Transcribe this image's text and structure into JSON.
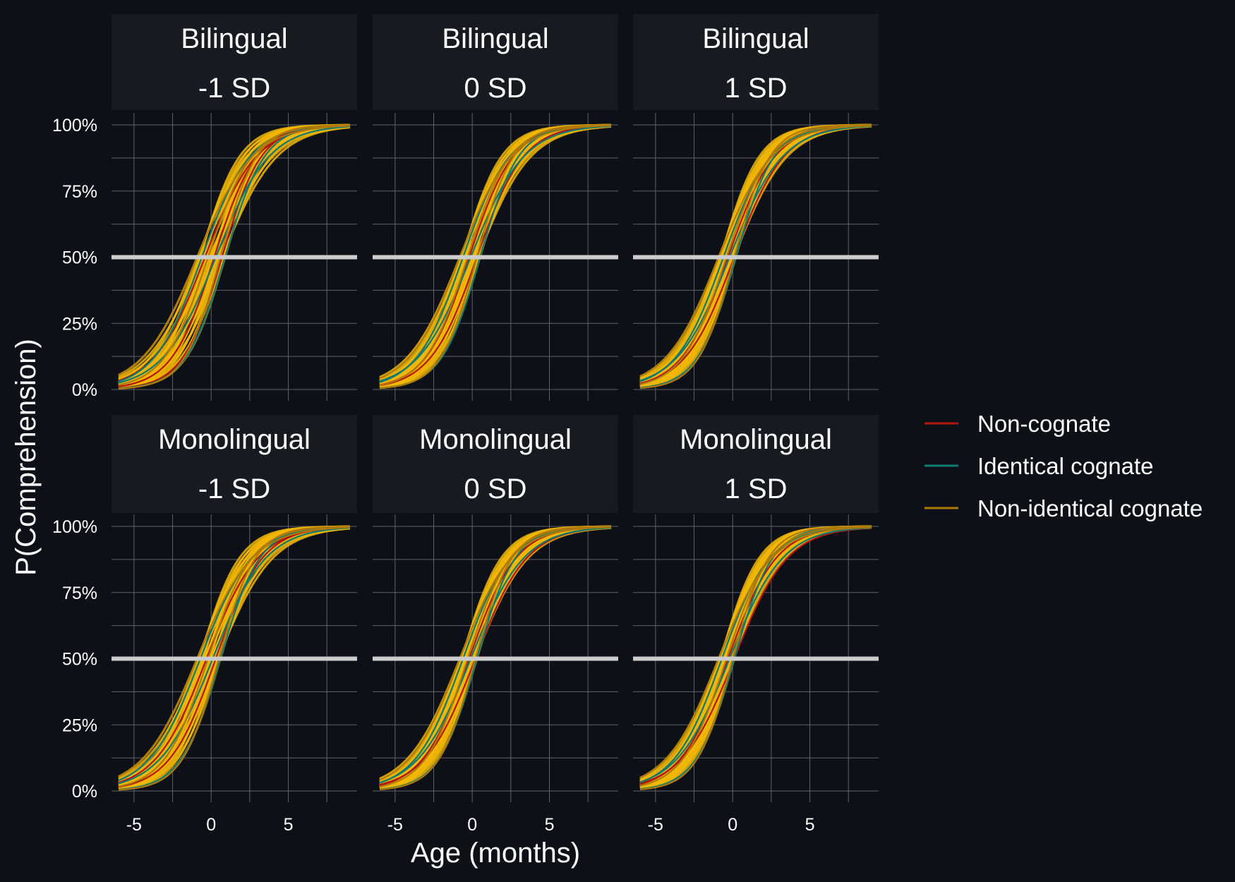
{
  "chart_data": {
    "type": "line",
    "xlabel": "Age (months)",
    "ylabel": "P(Comprehension)",
    "xlim": [
      -6,
      9
    ],
    "ylim": [
      0,
      1
    ],
    "x_ticks": [
      -5,
      0,
      5
    ],
    "x_tick_labels": [
      "-5",
      "0",
      "5"
    ],
    "y_ticks": [
      0,
      0.25,
      0.5,
      0.75,
      1
    ],
    "y_tick_labels": [
      "0%",
      "25%",
      "50%",
      "75%",
      "100%"
    ],
    "reference_line": {
      "y": 0.5,
      "color": "#cccccc"
    },
    "grid": true,
    "legend_position": "right",
    "legend": [
      {
        "name": "Non-cognate",
        "color": "#b3160d"
      },
      {
        "name": "Identical cognate",
        "color": "#0e7a73"
      },
      {
        "name": "Non-identical cognate",
        "color": "#b07a08"
      }
    ],
    "colors": {
      "background": "#0d1117",
      "panel": "#0d1117",
      "strip": "#161b22",
      "grid": "#5f6368",
      "curve_fill": "#f2b705"
    },
    "curve_model": "logistic",
    "panels": [
      {
        "strip": [
          "Bilingual",
          "-1 SD"
        ],
        "curves": [
          {
            "group": "Non-cognate",
            "midpoint": 0.2,
            "slope": 0.72
          },
          {
            "group": "Non-cognate",
            "midpoint": -0.4,
            "slope": 0.6
          },
          {
            "group": "Non-cognate",
            "midpoint": 0.7,
            "slope": 0.78
          },
          {
            "group": "Identical cognate",
            "midpoint": -0.6,
            "slope": 0.64
          },
          {
            "group": "Identical cognate",
            "midpoint": 0.9,
            "slope": 0.78
          },
          {
            "group": "Identical cognate",
            "midpoint": 0.3,
            "slope": 0.58
          },
          {
            "group": "Non-identical cognate",
            "midpoint": -0.9,
            "slope": 0.56
          },
          {
            "group": "Non-identical cognate",
            "midpoint": 0.6,
            "slope": 0.85
          },
          {
            "group": "Non-identical cognate",
            "midpoint": -0.2,
            "slope": 0.7
          }
        ]
      },
      {
        "strip": [
          "Bilingual",
          "0 SD"
        ],
        "curves": [
          {
            "group": "Non-cognate",
            "midpoint": -0.2,
            "slope": 0.7
          },
          {
            "group": "Non-cognate",
            "midpoint": 0.3,
            "slope": 0.66
          },
          {
            "group": "Identical cognate",
            "midpoint": -0.6,
            "slope": 0.66
          },
          {
            "group": "Identical cognate",
            "midpoint": 0.5,
            "slope": 0.8
          },
          {
            "group": "Identical cognate",
            "midpoint": -0.1,
            "slope": 0.58
          },
          {
            "group": "Non-identical cognate",
            "midpoint": -0.8,
            "slope": 0.6
          },
          {
            "group": "Non-identical cognate",
            "midpoint": 0.3,
            "slope": 0.84
          },
          {
            "group": "Non-identical cognate",
            "midpoint": -0.3,
            "slope": 0.72
          }
        ]
      },
      {
        "strip": [
          "Bilingual",
          "1 SD"
        ],
        "curves": [
          {
            "group": "Non-cognate",
            "midpoint": -0.3,
            "slope": 0.66
          },
          {
            "group": "Non-cognate",
            "midpoint": 0.1,
            "slope": 0.62
          },
          {
            "group": "Identical cognate",
            "midpoint": -0.6,
            "slope": 0.64
          },
          {
            "group": "Identical cognate",
            "midpoint": 0.2,
            "slope": 0.8
          },
          {
            "group": "Identical cognate",
            "midpoint": -0.2,
            "slope": 0.58
          },
          {
            "group": "Non-identical cognate",
            "midpoint": -0.9,
            "slope": 0.58
          },
          {
            "group": "Non-identical cognate",
            "midpoint": 0.1,
            "slope": 0.86
          },
          {
            "group": "Non-identical cognate",
            "midpoint": -0.4,
            "slope": 0.7
          }
        ]
      },
      {
        "strip": [
          "Monolingual",
          "-1 SD"
        ],
        "curves": [
          {
            "group": "Non-cognate",
            "midpoint": 0.3,
            "slope": 0.66
          },
          {
            "group": "Non-cognate",
            "midpoint": -0.3,
            "slope": 0.6
          },
          {
            "group": "Identical cognate",
            "midpoint": -0.7,
            "slope": 0.6
          },
          {
            "group": "Identical cognate",
            "midpoint": 0.6,
            "slope": 0.78
          },
          {
            "group": "Identical cognate",
            "midpoint": 0.1,
            "slope": 0.58
          },
          {
            "group": "Non-identical cognate",
            "midpoint": -0.9,
            "slope": 0.56
          },
          {
            "group": "Non-identical cognate",
            "midpoint": 0.5,
            "slope": 0.84
          },
          {
            "group": "Non-identical cognate",
            "midpoint": -0.2,
            "slope": 0.7
          }
        ]
      },
      {
        "strip": [
          "Monolingual",
          "0 SD"
        ],
        "curves": [
          {
            "group": "Non-cognate",
            "midpoint": 0.2,
            "slope": 0.6
          },
          {
            "group": "Non-cognate",
            "midpoint": -0.2,
            "slope": 0.66
          },
          {
            "group": "Identical cognate",
            "midpoint": -0.6,
            "slope": 0.64
          },
          {
            "group": "Identical cognate",
            "midpoint": 0.3,
            "slope": 0.8
          },
          {
            "group": "Identical cognate",
            "midpoint": -0.1,
            "slope": 0.58
          },
          {
            "group": "Non-identical cognate",
            "midpoint": -0.8,
            "slope": 0.6
          },
          {
            "group": "Non-identical cognate",
            "midpoint": 0.2,
            "slope": 0.84
          },
          {
            "group": "Non-identical cognate",
            "midpoint": -0.3,
            "slope": 0.72
          }
        ]
      },
      {
        "strip": [
          "Monolingual",
          "1 SD"
        ],
        "curves": [
          {
            "group": "Non-cognate",
            "midpoint": 0.1,
            "slope": 0.58
          },
          {
            "group": "Non-cognate",
            "midpoint": -0.3,
            "slope": 0.64
          },
          {
            "group": "Identical cognate",
            "midpoint": -0.7,
            "slope": 0.64
          },
          {
            "group": "Identical cognate",
            "midpoint": 0.1,
            "slope": 0.8
          },
          {
            "group": "Identical cognate",
            "midpoint": -0.2,
            "slope": 0.58
          },
          {
            "group": "Non-identical cognate",
            "midpoint": -0.9,
            "slope": 0.58
          },
          {
            "group": "Non-identical cognate",
            "midpoint": 0.0,
            "slope": 0.86
          },
          {
            "group": "Non-identical cognate",
            "midpoint": -0.4,
            "slope": 0.7
          }
        ]
      }
    ]
  }
}
